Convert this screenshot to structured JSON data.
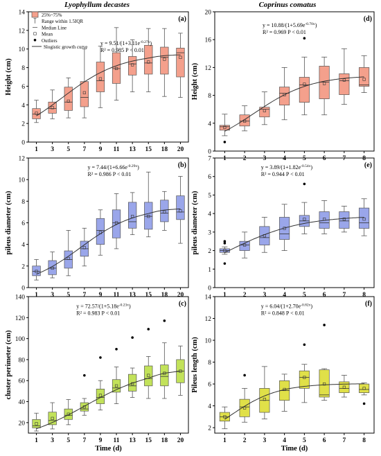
{
  "column_titles": [
    "Lyophyllum decastes",
    "Coprinus comatus"
  ],
  "legend": {
    "items": [
      {
        "label": "25%~75%",
        "icon": "box-swatch-icon"
      },
      {
        "label": "Range within 1.5IQR",
        "icon": "whisker-icon"
      },
      {
        "label": "Median Line",
        "icon": "median-line-icon"
      },
      {
        "label": "Mean",
        "icon": "mean-square-icon"
      },
      {
        "label": "Outliers",
        "icon": "outlier-dot-icon"
      },
      {
        "label": "Slogistic growth curve",
        "icon": "curve-line-icon"
      }
    ]
  },
  "chart_data": [
    {
      "id": "a",
      "type": "box",
      "title": "",
      "panel_label": "(a)",
      "xlabel": "",
      "ylabel": "Height (cm)",
      "ylim": [
        0,
        14
      ],
      "yticks": [
        0,
        2,
        4,
        6,
        8,
        10,
        12,
        14
      ],
      "categories": [
        "1",
        "3",
        "5",
        "7",
        "9",
        "11",
        "13",
        "15",
        "18",
        "20"
      ],
      "x_values": [
        1,
        3,
        5,
        7,
        9,
        11,
        13,
        15,
        18,
        20
      ],
      "box_color": "#f4a08c",
      "equation": "y = 9.51/(1+3.11e^{-0.27x})",
      "r2": "R² = 0.985  P < 0.01",
      "fit": {
        "a": 9.51,
        "b": 3.11,
        "k": 0.27
      },
      "boxes": [
        {
          "min": 2.1,
          "q1": 2.5,
          "median": 3.0,
          "q3": 3.6,
          "max": 4.5,
          "mean": 3.1
        },
        {
          "min": 2.5,
          "q1": 3.1,
          "median": 3.6,
          "q3": 4.3,
          "max": 5.6,
          "mean": 3.7
        },
        {
          "min": 2.6,
          "q1": 3.4,
          "median": 4.3,
          "q3": 5.9,
          "max": 6.9,
          "mean": 4.4
        },
        {
          "min": 2.6,
          "q1": 3.8,
          "median": 4.8,
          "q3": 6.5,
          "max": 10.0,
          "mean": 5.3
        },
        {
          "min": 3.7,
          "q1": 5.4,
          "median": 6.6,
          "q3": 8.6,
          "max": 10.3,
          "mean": 6.8
        },
        {
          "min": 4.5,
          "q1": 6.3,
          "median": 7.9,
          "q3": 9.6,
          "max": 12.3,
          "mean": 7.9
        },
        {
          "min": 5.4,
          "q1": 7.2,
          "median": 8.4,
          "q3": 9.2,
          "max": 11.0,
          "mean": 8.3
        },
        {
          "min": 5.4,
          "q1": 7.3,
          "median": 8.5,
          "q3": 10.4,
          "max": 12.2,
          "mean": 8.6
        },
        {
          "min": 4.9,
          "q1": 7.3,
          "median": 9.1,
          "q3": 10.2,
          "max": 12.2,
          "mean": 8.9
        },
        {
          "min": 4.8,
          "q1": 7.0,
          "median": 9.6,
          "q3": 10.1,
          "max": 11.7,
          "mean": 9.1
        }
      ],
      "outliers": []
    },
    {
      "id": "d",
      "type": "box",
      "title": "",
      "panel_label": "(d)",
      "xlabel": "",
      "ylabel": "Height (cm)",
      "ylim": [
        0,
        20
      ],
      "yticks": [
        0,
        4,
        8,
        12,
        16,
        20
      ],
      "categories": [
        "1",
        "2",
        "3",
        "4",
        "5",
        "6",
        "7",
        "8"
      ],
      "x_values": [
        1,
        2,
        3,
        4,
        5,
        6,
        7,
        8
      ],
      "box_color": "#f4a08c",
      "equation": "y = 10.88/(1+5.69e^{-0.70x})",
      "r2": "R² = 0.969  P < 0.01",
      "fit": {
        "a": 10.88,
        "b": 5.69,
        "k": 0.7
      },
      "boxes": [
        {
          "min": 2.2,
          "q1": 3.0,
          "median": 3.5,
          "q3": 3.7,
          "max": 5.3,
          "mean": 3.4
        },
        {
          "min": 2.9,
          "q1": 3.6,
          "median": 4.3,
          "q3": 5.2,
          "max": 6.5,
          "mean": 4.3
        },
        {
          "min": 3.8,
          "q1": 4.9,
          "median": 6.0,
          "q3": 6.3,
          "max": 8.5,
          "mean": 5.8
        },
        {
          "min": 4.5,
          "q1": 6.6,
          "median": 8.3,
          "q3": 9.2,
          "max": 12.0,
          "mean": 8.1
        },
        {
          "min": 5.2,
          "q1": 7.0,
          "median": 9.5,
          "q3": 10.6,
          "max": 13.5,
          "mean": 9.6
        },
        {
          "min": 5.2,
          "q1": 7.5,
          "median": 9.9,
          "q3": 12.2,
          "max": 13.5,
          "mean": 9.7
        },
        {
          "min": 6.7,
          "q1": 8.1,
          "median": 10.1,
          "q3": 11.1,
          "max": 14.7,
          "mean": 10.2
        },
        {
          "min": 8.4,
          "q1": 9.3,
          "median": 9.5,
          "q3": 12.0,
          "max": 13.7,
          "mean": 10.3
        }
      ],
      "outliers": [
        {
          "x": 1,
          "y": 1.3
        },
        {
          "x": 5,
          "y": 16.2
        }
      ]
    },
    {
      "id": "b",
      "type": "box",
      "title": "",
      "panel_label": "(b)",
      "xlabel": "",
      "ylabel": "pileus diameter (cm)",
      "ylim": [
        0,
        12
      ],
      "yticks": [
        0,
        2,
        4,
        6,
        8,
        10,
        12
      ],
      "categories": [
        "1",
        "3",
        "5",
        "7",
        "9",
        "11",
        "13",
        "15",
        "18",
        "20"
      ],
      "x_values": [
        1,
        3,
        5,
        7,
        9,
        11,
        13,
        15,
        18,
        20
      ],
      "box_color": "#9aa6ea",
      "equation": "y = 7.44/(1+6.66e^{-0.29x})",
      "r2": "R² = 0.986  P < 0.01",
      "fit": {
        "a": 7.44,
        "b": 6.66,
        "k": 0.29
      },
      "boxes": [
        {
          "min": 0.7,
          "q1": 1.1,
          "median": 1.5,
          "q3": 2.0,
          "max": 2.6,
          "mean": 1.5
        },
        {
          "min": 0.9,
          "q1": 1.2,
          "median": 1.8,
          "q3": 2.5,
          "max": 3.3,
          "mean": 1.8
        },
        {
          "min": 1.1,
          "q1": 1.8,
          "median": 2.6,
          "q3": 3.4,
          "max": 5.3,
          "mean": 2.7
        },
        {
          "min": 2.0,
          "q1": 2.9,
          "median": 3.6,
          "q3": 4.3,
          "max": 5.5,
          "mean": 3.7
        },
        {
          "min": 3.0,
          "q1": 4.0,
          "median": 5.3,
          "q3": 6.4,
          "max": 7.2,
          "mean": 5.1
        },
        {
          "min": 3.6,
          "q1": 4.6,
          "median": 6.0,
          "q3": 7.2,
          "max": 8.7,
          "mean": 6.0
        },
        {
          "min": 4.9,
          "q1": 5.5,
          "median": 6.1,
          "q3": 7.9,
          "max": 8.8,
          "mean": 6.6
        },
        {
          "min": 4.7,
          "q1": 5.4,
          "median": 6.6,
          "q3": 7.9,
          "max": 10.7,
          "mean": 6.6
        },
        {
          "min": 5.3,
          "q1": 6.1,
          "median": 6.9,
          "q3": 8.1,
          "max": 8.9,
          "mean": 7.0
        },
        {
          "min": 4.1,
          "q1": 6.3,
          "median": 7.0,
          "q3": 8.5,
          "max": 10.3,
          "mean": 7.1
        }
      ],
      "outliers": []
    },
    {
      "id": "e",
      "type": "box",
      "title": "",
      "panel_label": "(e)",
      "xlabel": "",
      "ylabel": "pileus diameter (cm)",
      "ylim": [
        0,
        7
      ],
      "yticks": [
        0,
        1,
        2,
        3,
        4,
        5,
        6,
        7
      ],
      "categories": [
        "1",
        "2",
        "3",
        "4",
        "5",
        "6",
        "7",
        "8"
      ],
      "x_values": [
        1,
        2,
        3,
        4,
        5,
        6,
        7,
        8
      ],
      "box_color": "#9aa6ea",
      "equation": "y = 3.89/(1+1.82e^{-0.54x})",
      "r2": "R² = 0.944  P < 0.01",
      "fit": {
        "a": 3.89,
        "b": 1.82,
        "k": 0.54
      },
      "boxes": [
        {
          "min": 1.8,
          "q1": 1.9,
          "median": 2.0,
          "q3": 2.1,
          "max": 2.2,
          "mean": 2.0
        },
        {
          "min": 1.6,
          "q1": 2.0,
          "median": 2.3,
          "q3": 2.5,
          "max": 3.0,
          "mean": 2.3
        },
        {
          "min": 1.9,
          "q1": 2.3,
          "median": 2.7,
          "q3": 3.3,
          "max": 3.8,
          "mean": 2.8
        },
        {
          "min": 2.0,
          "q1": 2.6,
          "median": 2.9,
          "q3": 3.8,
          "max": 4.5,
          "mean": 3.2
        },
        {
          "min": 2.9,
          "q1": 3.3,
          "median": 3.6,
          "q3": 3.9,
          "max": 4.6,
          "mean": 3.7
        },
        {
          "min": 2.9,
          "q1": 3.2,
          "median": 3.5,
          "q3": 4.1,
          "max": 4.7,
          "mean": 3.7
        },
        {
          "min": 3.0,
          "q1": 3.2,
          "median": 3.6,
          "q3": 4.1,
          "max": 4.4,
          "mean": 3.7
        },
        {
          "min": 2.8,
          "q1": 3.2,
          "median": 3.5,
          "q3": 4.3,
          "max": 4.8,
          "mean": 3.7
        }
      ],
      "outliers": [
        {
          "x": 1,
          "y": 2.5
        },
        {
          "x": 1,
          "y": 2.4
        },
        {
          "x": 1,
          "y": 1.3
        },
        {
          "x": 5,
          "y": 5.6
        }
      ]
    },
    {
      "id": "c",
      "type": "box",
      "title": "",
      "panel_label": "(c)",
      "xlabel": "Time (d)",
      "ylabel": "cluster perimeter (cm)",
      "ylim": [
        10,
        140
      ],
      "yticks": [
        20,
        40,
        60,
        80,
        100,
        120,
        140
      ],
      "categories": [
        "1",
        "3",
        "5",
        "7",
        "9",
        "11",
        "13",
        "15",
        "18",
        "20"
      ],
      "x_values": [
        1,
        3,
        5,
        7,
        9,
        11,
        13,
        15,
        18,
        20
      ],
      "box_color": "#c2e25a",
      "equation": "y = 72.57/(1+5.18e^{-0.23x})",
      "r2": "R² = 0.983  P < 0.01",
      "fit": {
        "a": 72.57,
        "b": 5.18,
        "k": 0.23
      },
      "boxes": [
        {
          "min": 12,
          "q1": 15,
          "median": 17,
          "q3": 23,
          "max": 29,
          "mean": 19
        },
        {
          "min": 14,
          "q1": 18,
          "median": 22,
          "q3": 30,
          "max": 39,
          "mean": 24
        },
        {
          "min": 18,
          "q1": 23,
          "median": 27,
          "q3": 33,
          "max": 42,
          "mean": 28
        },
        {
          "min": 27,
          "q1": 31,
          "median": 33,
          "q3": 39,
          "max": 43,
          "mean": 35
        },
        {
          "min": 32,
          "q1": 38,
          "median": 44,
          "q3": 52,
          "max": 60,
          "mean": 46
        },
        {
          "min": 38,
          "q1": 49,
          "median": 53,
          "q3": 61,
          "max": 73,
          "mean": 55
        },
        {
          "min": 44,
          "q1": 50,
          "median": 55,
          "q3": 66,
          "max": 72,
          "mean": 57
        },
        {
          "min": 43,
          "q1": 55,
          "median": 62,
          "q3": 74,
          "max": 83,
          "mean": 65
        },
        {
          "min": 43,
          "q1": 55,
          "median": 64,
          "q3": 75,
          "max": 96,
          "mean": 67
        },
        {
          "min": 46,
          "q1": 58,
          "median": 69,
          "q3": 80,
          "max": 93,
          "mean": 69
        }
      ],
      "outliers": [
        {
          "x": 7,
          "y": 65
        },
        {
          "x": 9,
          "y": 82
        },
        {
          "x": 11,
          "y": 90
        },
        {
          "x": 13,
          "y": 101
        },
        {
          "x": 15,
          "y": 109
        },
        {
          "x": 18,
          "y": 117
        }
      ]
    },
    {
      "id": "f",
      "type": "box",
      "title": "",
      "panel_label": "(f)",
      "xlabel": "Time (d)",
      "ylabel": "Pileus length (cm)",
      "ylim": [
        1.5,
        14
      ],
      "yticks": [
        2,
        4,
        6,
        8,
        10,
        12,
        14
      ],
      "categories": [
        "1",
        "2",
        "3",
        "4",
        "5",
        "6",
        "7",
        "8"
      ],
      "x_values": [
        1,
        2,
        3,
        4,
        5,
        6,
        7,
        8
      ],
      "box_color": "#e0e048",
      "equation": "y = 6.04/(1+2.70e^{-0.82x})",
      "r2": "R² = 0.848  P < 0.01",
      "fit": {
        "a": 6.04,
        "b": 2.7,
        "k": 0.82
      },
      "boxes": [
        {
          "min": 1.9,
          "q1": 2.6,
          "median": 3.0,
          "q3": 3.4,
          "max": 3.9,
          "mean": 3.0
        },
        {
          "min": 2.5,
          "q1": 3.0,
          "median": 3.9,
          "q3": 4.6,
          "max": 5.6,
          "mean": 3.8
        },
        {
          "min": 2.8,
          "q1": 3.4,
          "median": 4.5,
          "q3": 5.6,
          "max": 7.6,
          "mean": 4.6
        },
        {
          "min": 3.5,
          "q1": 4.5,
          "median": 5.4,
          "q3": 6.3,
          "max": 6.9,
          "mean": 5.5
        },
        {
          "min": 4.3,
          "q1": 5.6,
          "median": 6.6,
          "q3": 7.2,
          "max": 7.8,
          "mean": 6.6
        },
        {
          "min": 4.5,
          "q1": 4.8,
          "median": 5.0,
          "q3": 7.3,
          "max": 7.4,
          "mean": 6.0
        },
        {
          "min": 4.8,
          "q1": 5.2,
          "median": 5.6,
          "q3": 6.2,
          "max": 6.8,
          "mean": 5.7
        },
        {
          "min": 5.0,
          "q1": 5.2,
          "median": 5.5,
          "q3": 6.0,
          "max": 6.1,
          "mean": 5.6
        }
      ],
      "outliers": [
        {
          "x": 2,
          "y": 6.8
        },
        {
          "x": 5,
          "y": 9.6
        },
        {
          "x": 6,
          "y": 11.4
        },
        {
          "x": 8,
          "y": 4.2
        }
      ]
    }
  ]
}
